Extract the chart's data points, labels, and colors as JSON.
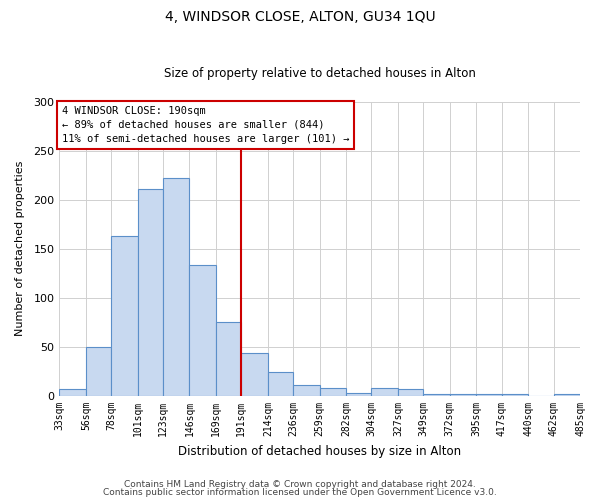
{
  "title": "4, WINDSOR CLOSE, ALTON, GU34 1QU",
  "subtitle": "Size of property relative to detached houses in Alton",
  "xlabel": "Distribution of detached houses by size in Alton",
  "ylabel": "Number of detached properties",
  "bin_edges": [
    33,
    56,
    78,
    101,
    123,
    146,
    169,
    191,
    214,
    236,
    259,
    282,
    304,
    327,
    349,
    372,
    395,
    417,
    440,
    462,
    485
  ],
  "bar_heights": [
    7,
    50,
    163,
    211,
    222,
    133,
    75,
    44,
    25,
    11,
    8,
    3,
    8,
    7,
    2,
    2,
    2,
    2,
    0,
    2
  ],
  "bar_color": "#c8d9f0",
  "bar_edge_color": "#5b8fc9",
  "vline_x": 191,
  "vline_color": "#cc0000",
  "ylim": [
    0,
    300
  ],
  "yticks": [
    0,
    50,
    100,
    150,
    200,
    250,
    300
  ],
  "annotation_line1": "4 WINDSOR CLOSE: 190sqm",
  "annotation_line2": "← 89% of detached houses are smaller (844)",
  "annotation_line3": "11% of semi-detached houses are larger (101) →",
  "footer1": "Contains HM Land Registry data © Crown copyright and database right 2024.",
  "footer2": "Contains public sector information licensed under the Open Government Licence v3.0.",
  "annotation_box_facecolor": "#ffffff",
  "annotation_box_edgecolor": "#cc0000",
  "tick_labels": [
    "33sqm",
    "56sqm",
    "78sqm",
    "101sqm",
    "123sqm",
    "146sqm",
    "169sqm",
    "191sqm",
    "214sqm",
    "236sqm",
    "259sqm",
    "282sqm",
    "304sqm",
    "327sqm",
    "349sqm",
    "372sqm",
    "395sqm",
    "417sqm",
    "440sqm",
    "462sqm",
    "485sqm"
  ],
  "bg_color": "#ffffff",
  "grid_color": "#d0d0d0",
  "title_fontsize": 10,
  "subtitle_fontsize": 8.5,
  "xlabel_fontsize": 8.5,
  "ylabel_fontsize": 8,
  "tick_fontsize": 7,
  "annotation_fontsize": 7.5,
  "footer_fontsize": 6.5
}
